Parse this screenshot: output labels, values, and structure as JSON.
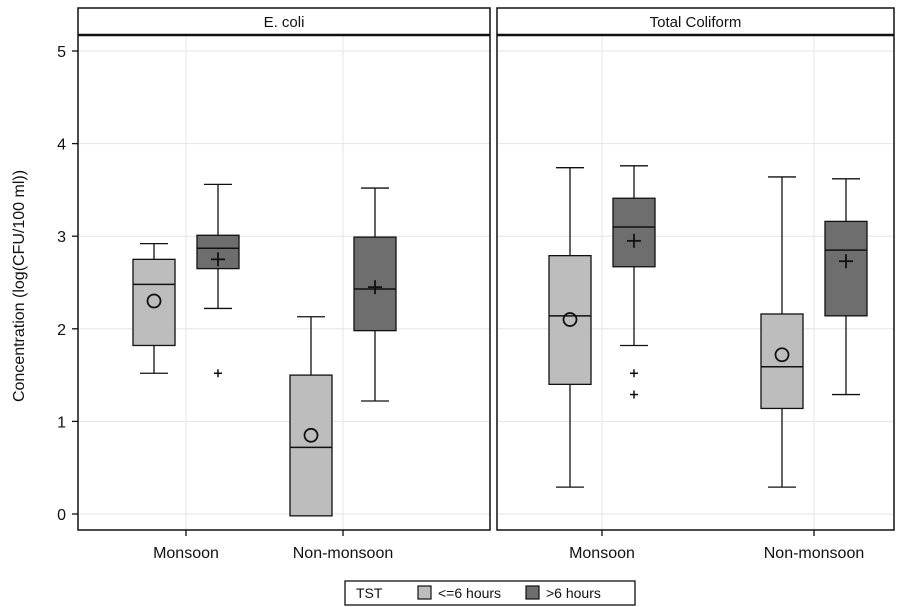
{
  "chart_data": {
    "type": "box",
    "ylabel": "Concentration (log(CFU/100 ml))",
    "ylim": [
      -0.15,
      5.3
    ],
    "yticks": [
      0,
      1,
      2,
      3,
      4,
      5
    ],
    "categories": [
      "Monsoon",
      "Non-monsoon"
    ],
    "legend": {
      "title": "TST",
      "position": "bottom",
      "entries": [
        "<=6 hours",
        ">6 hours"
      ]
    },
    "colors": {
      "<=6 hours": "#bdbdbd",
      ">6 hours": "#6e6e6e"
    },
    "panels": [
      {
        "title": "E. coli",
        "boxes": [
          {
            "category": "Monsoon",
            "group": "<=6 hours",
            "whisker_low": 1.52,
            "q1": 1.82,
            "median": 2.48,
            "q3": 2.75,
            "whisker_high": 2.92,
            "mean": 2.3,
            "mean_marker": "circle",
            "outliers": []
          },
          {
            "category": "Monsoon",
            "group": ">6 hours",
            "whisker_low": 2.22,
            "q1": 2.65,
            "median": 2.87,
            "q3": 3.01,
            "whisker_high": 3.56,
            "mean": 2.75,
            "mean_marker": "plus",
            "outliers": [
              1.52
            ]
          },
          {
            "category": "Non-monsoon",
            "group": "<=6 hours",
            "whisker_low": -0.02,
            "q1": -0.02,
            "median": 0.72,
            "q3": 1.5,
            "whisker_high": 2.13,
            "mean": 0.85,
            "mean_marker": "circle",
            "outliers": []
          },
          {
            "category": "Non-monsoon",
            "group": ">6 hours",
            "whisker_low": 1.22,
            "q1": 1.98,
            "median": 2.43,
            "q3": 2.99,
            "whisker_high": 3.52,
            "mean": 2.45,
            "mean_marker": "plus",
            "outliers": []
          }
        ]
      },
      {
        "title": "Total Coliform",
        "boxes": [
          {
            "category": "Monsoon",
            "group": "<=6 hours",
            "whisker_low": 0.29,
            "q1": 1.4,
            "median": 2.14,
            "q3": 2.79,
            "whisker_high": 3.74,
            "mean": 2.1,
            "mean_marker": "circle",
            "outliers": []
          },
          {
            "category": "Monsoon",
            "group": ">6 hours",
            "whisker_low": 1.82,
            "q1": 2.67,
            "median": 3.1,
            "q3": 3.41,
            "whisker_high": 3.76,
            "mean": 2.95,
            "mean_marker": "plus",
            "outliers": [
              1.52,
              1.29
            ]
          },
          {
            "category": "Non-monsoon",
            "group": "<=6 hours",
            "whisker_low": 0.29,
            "q1": 1.14,
            "median": 1.59,
            "q3": 2.16,
            "whisker_high": 3.64,
            "mean": 1.72,
            "mean_marker": "circle",
            "outliers": []
          },
          {
            "category": "Non-monsoon",
            "group": ">6 hours",
            "whisker_low": 1.29,
            "q1": 2.14,
            "median": 2.85,
            "q3": 3.16,
            "whisker_high": 3.62,
            "mean": 2.73,
            "mean_marker": "plus",
            "outliers": []
          }
        ]
      }
    ]
  }
}
